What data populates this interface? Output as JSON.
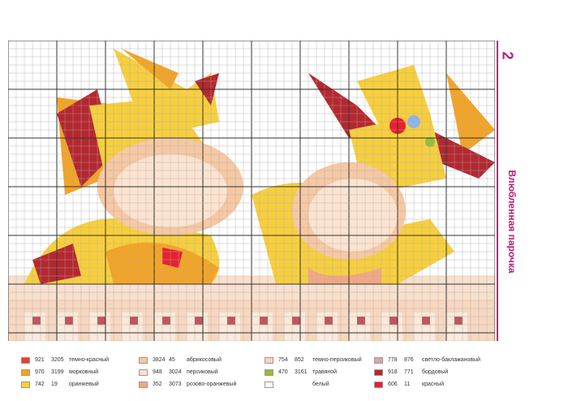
{
  "page_number": "2",
  "title": "Влюбленная парочка",
  "grid": {
    "cols": 60,
    "rows": 37,
    "major_every": 6
  },
  "legend": [
    [
      {
        "c1": "921",
        "c2": "3205",
        "name": "темно-красный",
        "color": "#e0403a"
      },
      {
        "c1": "970",
        "c2": "3199",
        "name": "морковный",
        "color": "#f3a425"
      },
      {
        "c1": "742",
        "c2": "19",
        "name": "оранжевый",
        "color": "#f7cf3e"
      }
    ],
    [
      {
        "c1": "3824",
        "c2": "45",
        "name": "абрикосовый",
        "color": "#f6c8a3"
      },
      {
        "c1": "948",
        "c2": "3024",
        "name": "персиковый",
        "color": "#fce3d0"
      },
      {
        "c1": "352",
        "c2": "3073",
        "name": "розово-оранжевый",
        "color": "#f1a882"
      }
    ],
    [
      {
        "c1": "754",
        "c2": "852",
        "name": "темно-персиковый",
        "color": "#f8d4c0"
      },
      {
        "c1": "470",
        "c2": "3161",
        "name": "травяной",
        "color": "#95bd3c"
      },
      {
        "c1": "",
        "c2": "",
        "name": "белый",
        "color": "#ffffff"
      }
    ],
    [
      {
        "c1": "778",
        "c2": "876",
        "name": "светло-баклажановый",
        "color": "#d8a7a8"
      },
      {
        "c1": "918",
        "c2": "771",
        "name": "бордовый",
        "color": "#b52830"
      },
      {
        "c1": "606",
        "c2": "11",
        "name": "красный",
        "color": "#e82030"
      }
    ]
  ]
}
